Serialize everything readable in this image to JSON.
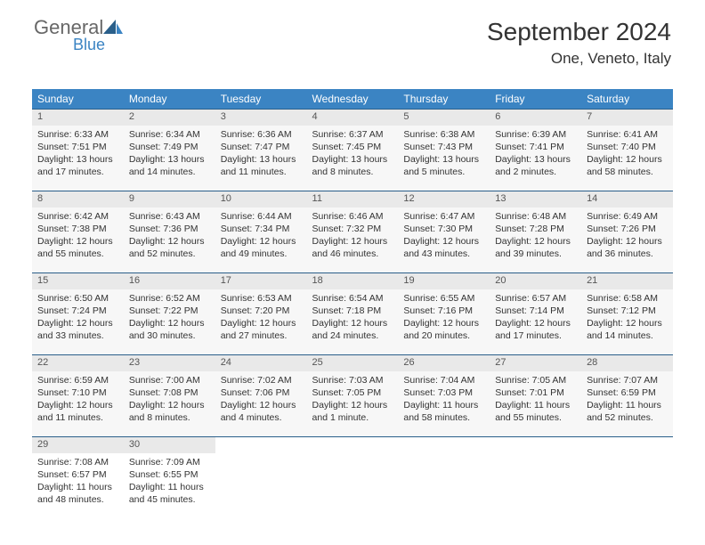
{
  "brand": {
    "word1": "General",
    "word2": "Blue"
  },
  "header": {
    "month": "September 2024",
    "location": "One, Veneto, Italy"
  },
  "colors": {
    "header_bg": "#3b84c3",
    "header_text": "#ffffff",
    "daynum_bg": "#e9e9e9",
    "cell_bg": "#f7f7f7",
    "border": "#2a5f8a",
    "page_bg": "#ffffff",
    "text": "#333333",
    "brand_gray": "#676767",
    "brand_blue": "#3b84c3"
  },
  "daynames": [
    "Sunday",
    "Monday",
    "Tuesday",
    "Wednesday",
    "Thursday",
    "Friday",
    "Saturday"
  ],
  "weeks": [
    [
      {
        "n": "1",
        "sr": "6:33 AM",
        "ss": "7:51 PM",
        "dl": "13 hours and 17 minutes."
      },
      {
        "n": "2",
        "sr": "6:34 AM",
        "ss": "7:49 PM",
        "dl": "13 hours and 14 minutes."
      },
      {
        "n": "3",
        "sr": "6:36 AM",
        "ss": "7:47 PM",
        "dl": "13 hours and 11 minutes."
      },
      {
        "n": "4",
        "sr": "6:37 AM",
        "ss": "7:45 PM",
        "dl": "13 hours and 8 minutes."
      },
      {
        "n": "5",
        "sr": "6:38 AM",
        "ss": "7:43 PM",
        "dl": "13 hours and 5 minutes."
      },
      {
        "n": "6",
        "sr": "6:39 AM",
        "ss": "7:41 PM",
        "dl": "13 hours and 2 minutes."
      },
      {
        "n": "7",
        "sr": "6:41 AM",
        "ss": "7:40 PM",
        "dl": "12 hours and 58 minutes."
      }
    ],
    [
      {
        "n": "8",
        "sr": "6:42 AM",
        "ss": "7:38 PM",
        "dl": "12 hours and 55 minutes."
      },
      {
        "n": "9",
        "sr": "6:43 AM",
        "ss": "7:36 PM",
        "dl": "12 hours and 52 minutes."
      },
      {
        "n": "10",
        "sr": "6:44 AM",
        "ss": "7:34 PM",
        "dl": "12 hours and 49 minutes."
      },
      {
        "n": "11",
        "sr": "6:46 AM",
        "ss": "7:32 PM",
        "dl": "12 hours and 46 minutes."
      },
      {
        "n": "12",
        "sr": "6:47 AM",
        "ss": "7:30 PM",
        "dl": "12 hours and 43 minutes."
      },
      {
        "n": "13",
        "sr": "6:48 AM",
        "ss": "7:28 PM",
        "dl": "12 hours and 39 minutes."
      },
      {
        "n": "14",
        "sr": "6:49 AM",
        "ss": "7:26 PM",
        "dl": "12 hours and 36 minutes."
      }
    ],
    [
      {
        "n": "15",
        "sr": "6:50 AM",
        "ss": "7:24 PM",
        "dl": "12 hours and 33 minutes."
      },
      {
        "n": "16",
        "sr": "6:52 AM",
        "ss": "7:22 PM",
        "dl": "12 hours and 30 minutes."
      },
      {
        "n": "17",
        "sr": "6:53 AM",
        "ss": "7:20 PM",
        "dl": "12 hours and 27 minutes."
      },
      {
        "n": "18",
        "sr": "6:54 AM",
        "ss": "7:18 PM",
        "dl": "12 hours and 24 minutes."
      },
      {
        "n": "19",
        "sr": "6:55 AM",
        "ss": "7:16 PM",
        "dl": "12 hours and 20 minutes."
      },
      {
        "n": "20",
        "sr": "6:57 AM",
        "ss": "7:14 PM",
        "dl": "12 hours and 17 minutes."
      },
      {
        "n": "21",
        "sr": "6:58 AM",
        "ss": "7:12 PM",
        "dl": "12 hours and 14 minutes."
      }
    ],
    [
      {
        "n": "22",
        "sr": "6:59 AM",
        "ss": "7:10 PM",
        "dl": "12 hours and 11 minutes."
      },
      {
        "n": "23",
        "sr": "7:00 AM",
        "ss": "7:08 PM",
        "dl": "12 hours and 8 minutes."
      },
      {
        "n": "24",
        "sr": "7:02 AM",
        "ss": "7:06 PM",
        "dl": "12 hours and 4 minutes."
      },
      {
        "n": "25",
        "sr": "7:03 AM",
        "ss": "7:05 PM",
        "dl": "12 hours and 1 minute."
      },
      {
        "n": "26",
        "sr": "7:04 AM",
        "ss": "7:03 PM",
        "dl": "11 hours and 58 minutes."
      },
      {
        "n": "27",
        "sr": "7:05 AM",
        "ss": "7:01 PM",
        "dl": "11 hours and 55 minutes."
      },
      {
        "n": "28",
        "sr": "7:07 AM",
        "ss": "6:59 PM",
        "dl": "11 hours and 52 minutes."
      }
    ],
    [
      {
        "n": "29",
        "sr": "7:08 AM",
        "ss": "6:57 PM",
        "dl": "11 hours and 48 minutes."
      },
      {
        "n": "30",
        "sr": "7:09 AM",
        "ss": "6:55 PM",
        "dl": "11 hours and 45 minutes."
      },
      null,
      null,
      null,
      null,
      null
    ]
  ],
  "labels": {
    "sunrise": "Sunrise:",
    "sunset": "Sunset:",
    "daylight": "Daylight:"
  }
}
